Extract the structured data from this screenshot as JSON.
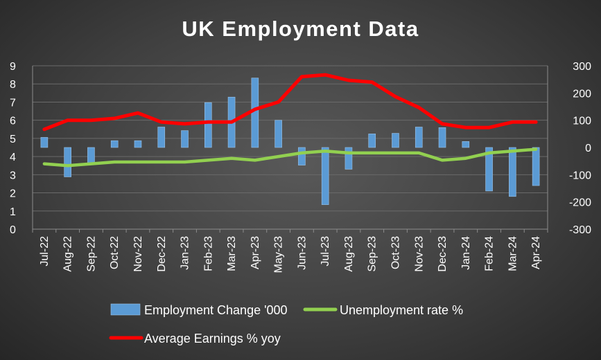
{
  "chart_data": {
    "type": "bar",
    "title": "UK Employment Data",
    "categories": [
      "Jul-22",
      "Aug-22",
      "Sep-22",
      "Oct-22",
      "Nov-22",
      "Dec-22",
      "Jan-23",
      "Feb-23",
      "Mar-23",
      "Apr-23",
      "May-23",
      "Jun-23",
      "Jul-23",
      "Aug-23",
      "Sep-23",
      "Oct-23",
      "Nov-23",
      "Dec-23",
      "Jan-24",
      "Feb-24",
      "Mar-24",
      "Apr-24"
    ],
    "series": [
      {
        "name": "Employment Change '000",
        "type": "bar",
        "axis": "right",
        "color": "#5b9bd5",
        "values": [
          37,
          -108,
          -58,
          25,
          25,
          75,
          62,
          165,
          185,
          255,
          100,
          -65,
          -210,
          -80,
          50,
          52,
          75,
          73,
          22,
          -160,
          -180,
          -140
        ]
      },
      {
        "name": "Unemployment rate %",
        "type": "line",
        "axis": "left",
        "color": "#92d050",
        "values": [
          3.6,
          3.5,
          3.6,
          3.7,
          3.7,
          3.7,
          3.7,
          3.8,
          3.9,
          3.8,
          4.0,
          4.2,
          4.3,
          4.2,
          4.2,
          4.2,
          4.2,
          3.8,
          3.9,
          4.2,
          4.3,
          4.4
        ]
      },
      {
        "name": "Average Earnings % yoy",
        "type": "line",
        "axis": "left",
        "color": "#ff0000",
        "values": [
          5.5,
          6.0,
          6.0,
          6.1,
          6.4,
          5.9,
          5.8,
          5.9,
          5.9,
          6.6,
          7.0,
          8.4,
          8.5,
          8.2,
          8.1,
          7.3,
          6.7,
          5.8,
          5.6,
          5.6,
          5.9,
          5.9
        ]
      }
    ],
    "y_left": {
      "min": 0,
      "max": 9,
      "ticks": [
        "0",
        "1",
        "2",
        "3",
        "4",
        "5",
        "6",
        "7",
        "8",
        "9"
      ]
    },
    "y_right": {
      "min": -300,
      "max": 300,
      "ticks": [
        "-300",
        "-200",
        "-100",
        "0",
        "100",
        "200",
        "300"
      ]
    },
    "grid": true,
    "legend_position": "bottom",
    "background": "#404040"
  }
}
